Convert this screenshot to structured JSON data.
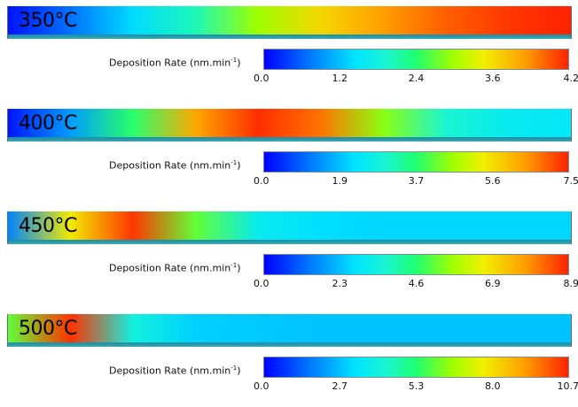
{
  "chart_data": [
    {
      "type": "heatmap",
      "label": "350°C",
      "colorbar_label": "Deposition Rate (nm.min",
      "colorbar_exponent": "-1",
      "range": [
        0.0,
        4.2
      ],
      "ticks": [
        "0.0",
        "1.2",
        "2.4",
        "3.6",
        "4.2"
      ],
      "x_profile": [
        0.1,
        0.6,
        1.2,
        1.8,
        2.6,
        3.2,
        3.6,
        3.9,
        4.1,
        4.2
      ]
    },
    {
      "type": "heatmap",
      "label": "400°C",
      "colorbar_label": "Deposition Rate (nm.min",
      "colorbar_exponent": "-1",
      "range": [
        0.0,
        7.5
      ],
      "ticks": [
        "0.0",
        "1.9",
        "3.7",
        "5.6",
        "7.5"
      ],
      "x_profile": [
        0.2,
        1.5,
        3.8,
        6.3,
        7.4,
        6.8,
        4.5,
        3.0,
        2.5,
        2.4
      ]
    },
    {
      "type": "heatmap",
      "label": "450°C",
      "colorbar_label": "Deposition Rate (nm.min",
      "colorbar_exponent": "-1",
      "range": [
        0.0,
        8.9
      ],
      "ticks": [
        "0.0",
        "2.3",
        "4.6",
        "6.9",
        "8.9"
      ],
      "x_profile": [
        1.5,
        6.5,
        8.7,
        5.0,
        3.0,
        2.6,
        2.5,
        2.5,
        2.5,
        2.5
      ]
    },
    {
      "type": "heatmap",
      "label": "500°C",
      "colorbar_label": "Deposition Rate (nm.min",
      "colorbar_exponent": "-1",
      "range": [
        0.0,
        10.7
      ],
      "ticks": [
        "0.0",
        "2.7",
        "5.3",
        "8.0",
        "10.7"
      ],
      "x_profile": [
        6.0,
        10.5,
        4.0,
        2.9,
        2.8,
        2.7,
        2.7,
        2.7,
        2.7,
        2.7
      ]
    }
  ]
}
